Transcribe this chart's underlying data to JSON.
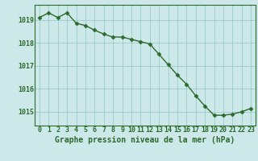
{
  "hours": [
    0,
    1,
    2,
    3,
    4,
    5,
    6,
    7,
    8,
    9,
    10,
    11,
    12,
    13,
    14,
    15,
    16,
    17,
    18,
    19,
    20,
    21,
    22,
    23
  ],
  "pressure": [
    1019.1,
    1019.3,
    1019.1,
    1019.3,
    1018.85,
    1018.75,
    1018.55,
    1018.38,
    1018.25,
    1018.25,
    1018.15,
    1018.05,
    1017.95,
    1017.5,
    1017.05,
    1016.6,
    1016.2,
    1015.7,
    1015.25,
    1014.85,
    1014.85,
    1014.9,
    1015.0,
    1015.15
  ],
  "ylim_min": 1014.4,
  "ylim_max": 1019.65,
  "yticks": [
    1015,
    1016,
    1017,
    1018,
    1019
  ],
  "xticks": [
    0,
    1,
    2,
    3,
    4,
    5,
    6,
    7,
    8,
    9,
    10,
    11,
    12,
    13,
    14,
    15,
    16,
    17,
    18,
    19,
    20,
    21,
    22,
    23
  ],
  "line_color": "#2d6a2d",
  "marker_color": "#2d6a2d",
  "bg_color": "#cce8e8",
  "grid_color": "#99cccc",
  "axis_color": "#2d6a2d",
  "spine_color": "#2d6a2d",
  "xlabel": "Graphe pression niveau de la mer (hPa)",
  "xlabel_fontsize": 7,
  "tick_fontsize": 6,
  "marker_size": 2.5,
  "line_width": 1.0
}
